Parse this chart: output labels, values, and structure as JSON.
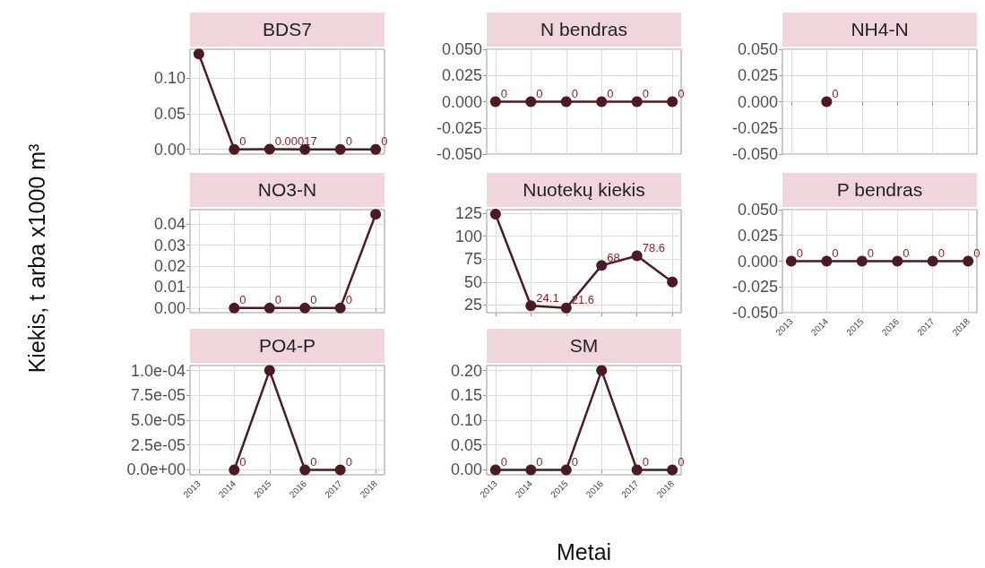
{
  "chart_data": [
    {
      "type": "line",
      "title": "BDS7",
      "x": [
        2013,
        2014,
        2015,
        2016,
        2017,
        2018
      ],
      "xlim": [
        2012.75,
        2018.25
      ],
      "xticks": [
        2013,
        2014,
        2015,
        2016,
        2017,
        2018
      ],
      "series": [
        {
          "color": "#4b1a22",
          "values": [
            0.134,
            0,
            0.00017,
            0,
            0,
            0
          ],
          "value_labels": [
            null,
            "0",
            "0.00017",
            null,
            "0",
            "0"
          ]
        }
      ],
      "ylim": [
        -0.0067,
        0.1407
      ],
      "yticks": [
        {
          "value": 0,
          "label": "0.00"
        },
        {
          "value": 0.05,
          "label": "0.05"
        },
        {
          "value": 0.1,
          "label": "0.10"
        }
      ],
      "grid": true,
      "marker": "circle",
      "line_style": "solid",
      "tick_labels": "y"
    },
    {
      "type": "line",
      "title": "N bendras",
      "x": [
        2013,
        2014,
        2015,
        2016,
        2017,
        2018
      ],
      "xlim": [
        2012.75,
        2018.25
      ],
      "xticks": [
        2013,
        2014,
        2015,
        2016,
        2017,
        2018
      ],
      "series": [
        {
          "color": "#4b1a22",
          "values": [
            0,
            0,
            0,
            0,
            0,
            0
          ],
          "value_labels": [
            "0",
            "0",
            "0",
            "0",
            "0",
            "0"
          ]
        }
      ],
      "ylim": [
        -0.05,
        0.05
      ],
      "yticks": [
        {
          "value": -0.05,
          "label": "-0.050"
        },
        {
          "value": -0.025,
          "label": "-0.025"
        },
        {
          "value": 0,
          "label": "0.000"
        },
        {
          "value": 0.025,
          "label": "0.025"
        },
        {
          "value": 0.05,
          "label": "0.050"
        }
      ],
      "grid": true,
      "marker": "circle",
      "line_style": "solid",
      "tick_labels": "y"
    },
    {
      "type": "line",
      "title": "NH4-N",
      "x": [
        2014
      ],
      "xlim": [
        2012.75,
        2018.25
      ],
      "xticks": [
        2013,
        2014,
        2015,
        2016,
        2017,
        2018
      ],
      "series": [
        {
          "color": "#4b1a22",
          "values": [
            0
          ],
          "value_labels": [
            "0"
          ]
        }
      ],
      "ylim": [
        -0.05,
        0.05
      ],
      "yticks": [
        {
          "value": -0.05,
          "label": "-0.050"
        },
        {
          "value": -0.025,
          "label": "-0.025"
        },
        {
          "value": 0,
          "label": "0.000"
        },
        {
          "value": 0.025,
          "label": "0.025"
        },
        {
          "value": 0.05,
          "label": "0.050"
        }
      ],
      "grid": true,
      "marker": "circle",
      "line_style": "solid",
      "tick_labels": "y"
    },
    {
      "type": "line",
      "title": "NO3-N",
      "ylabel": "Kiekis, t arba x1000 m³",
      "x": [
        2014,
        2015,
        2016,
        2017,
        2018
      ],
      "xlim": [
        2012.75,
        2018.25
      ],
      "xticks": [
        2013,
        2014,
        2015,
        2016,
        2017,
        2018
      ],
      "series": [
        {
          "color": "#4b1a22",
          "values": [
            0,
            0,
            0,
            0,
            0.0448
          ],
          "value_labels": [
            "0",
            "0",
            "0",
            "0",
            null
          ]
        }
      ],
      "ylim": [
        -0.0022,
        0.047
      ],
      "yticks": [
        {
          "value": 0,
          "label": "0.00"
        },
        {
          "value": 0.01,
          "label": "0.01"
        },
        {
          "value": 0.02,
          "label": "0.02"
        },
        {
          "value": 0.03,
          "label": "0.03"
        },
        {
          "value": 0.04,
          "label": "0.04"
        }
      ],
      "grid": true,
      "marker": "circle",
      "line_style": "solid",
      "tick_labels": "y"
    },
    {
      "type": "line",
      "title": "Nuotekų kiekis",
      "x": [
        2013,
        2014,
        2015,
        2016,
        2017,
        2018
      ],
      "xlim": [
        2012.75,
        2018.25
      ],
      "xticks": [
        2013,
        2014,
        2015,
        2016,
        2017,
        2018
      ],
      "series": [
        {
          "color": "#4b1a22",
          "values": [
            124,
            24.1,
            21.6,
            68,
            78.6,
            50
          ],
          "value_labels": [
            null,
            "24.1",
            "21.6",
            "68",
            "78.6",
            null
          ]
        }
      ],
      "ylim": [
        16.5,
        129
      ],
      "yticks": [
        25,
        50,
        75,
        100,
        125
      ],
      "grid": true,
      "marker": "circle",
      "line_style": "solid",
      "tick_labels": "y"
    },
    {
      "type": "line",
      "title": "P bendras",
      "x": [
        2013,
        2014,
        2015,
        2016,
        2017,
        2018
      ],
      "xlim": [
        2012.75,
        2018.25
      ],
      "xticks": [
        2013,
        2014,
        2015,
        2016,
        2017,
        2018
      ],
      "series": [
        {
          "color": "#4b1a22",
          "values": [
            0,
            0,
            0,
            0,
            0,
            0
          ],
          "value_labels": [
            "0",
            "0",
            "0",
            "0",
            "0",
            "0"
          ]
        }
      ],
      "ylim": [
        -0.05,
        0.05
      ],
      "yticks": [
        {
          "value": -0.05,
          "label": "-0.050"
        },
        {
          "value": -0.025,
          "label": "-0.025"
        },
        {
          "value": 0,
          "label": "0.000"
        },
        {
          "value": 0.025,
          "label": "0.025"
        },
        {
          "value": 0.05,
          "label": "0.050"
        }
      ],
      "grid": true,
      "marker": "circle",
      "line_style": "solid"
    },
    {
      "type": "line",
      "title": "PO4-P",
      "x": [
        2014,
        2015,
        2016,
        2017
      ],
      "xlim": [
        2012.75,
        2018.25
      ],
      "xticks": [
        2013,
        2014,
        2015,
        2016,
        2017,
        2018
      ],
      "series": [
        {
          "color": "#4b1a22",
          "values": [
            0,
            0.0001,
            0,
            0
          ],
          "value_labels": [
            "0",
            null,
            "0",
            "0"
          ]
        }
      ],
      "ylim": [
        -5e-06,
        0.000105
      ],
      "yticks": [
        {
          "value": 0,
          "label": "0.0e+00"
        },
        {
          "value": 2.5e-05,
          "label": "2.5e-05"
        },
        {
          "value": 5e-05,
          "label": "5.0e-05"
        },
        {
          "value": 7.5e-05,
          "label": "7.5e-05"
        },
        {
          "value": 0.0001,
          "label": "1.0e-04"
        }
      ],
      "grid": true,
      "marker": "circle",
      "line_style": "solid"
    },
    {
      "type": "line",
      "title": "SM",
      "xlabel": "Metai",
      "x": [
        2013,
        2014,
        2015,
        2016,
        2017,
        2018
      ],
      "xlim": [
        2012.75,
        2018.25
      ],
      "xticks": [
        2013,
        2014,
        2015,
        2016,
        2017,
        2018
      ],
      "series": [
        {
          "color": "#4b1a22",
          "values": [
            0,
            0,
            0,
            0.2,
            0,
            0
          ],
          "value_labels": [
            "0",
            "0",
            "0",
            null,
            "0",
            "0"
          ]
        }
      ],
      "ylim": [
        -0.01,
        0.21
      ],
      "yticks": [
        {
          "value": 0,
          "label": "0.00"
        },
        {
          "value": 0.05,
          "label": "0.05"
        },
        {
          "value": 0.1,
          "label": "0.10"
        },
        {
          "value": 0.15,
          "label": "0.15"
        },
        {
          "value": 0.2,
          "label": "0.20"
        }
      ],
      "grid": true,
      "marker": "circle",
      "line_style": "solid"
    }
  ]
}
